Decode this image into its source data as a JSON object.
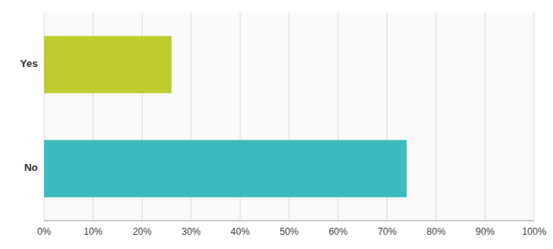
{
  "chart_data": {
    "type": "bar",
    "orientation": "horizontal",
    "categories": [
      "No",
      "Yes"
    ],
    "values": [
      0.74,
      0.26
    ],
    "colors": [
      "#3abcbc",
      "#bfcc2e"
    ],
    "xlim": [
      0,
      1.0
    ],
    "xticks": [
      {
        "value": 0,
        "label": "0%"
      },
      {
        "value": 0.1,
        "label": "10%"
      },
      {
        "value": 0.2,
        "label": "20%"
      },
      {
        "value": 0.3,
        "label": "30%"
      },
      {
        "value": 0.4,
        "label": "40%"
      },
      {
        "value": 0.5,
        "label": "50%"
      },
      {
        "value": 0.6,
        "label": "60%"
      },
      {
        "value": 0.7,
        "label": "70%"
      },
      {
        "value": 0.8,
        "label": "80%"
      },
      {
        "value": 0.9,
        "label": "90%"
      },
      {
        "value": 1.0,
        "label": "100%"
      }
    ],
    "grid": true
  }
}
